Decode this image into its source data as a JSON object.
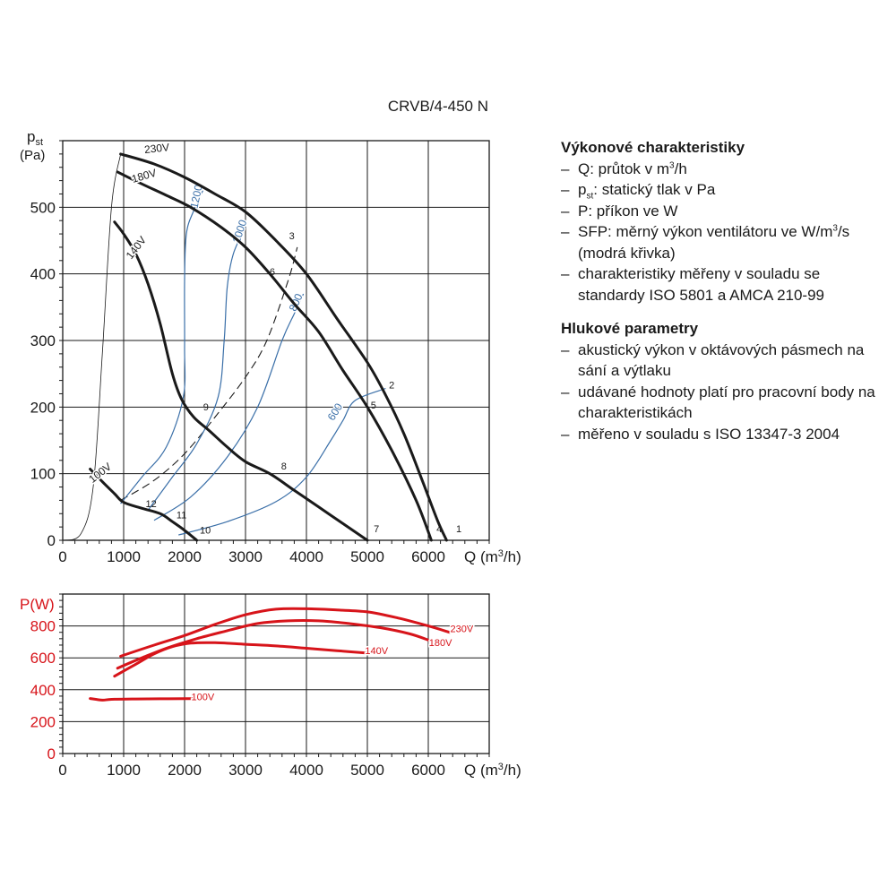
{
  "model_title": "CRVB/4-450 N",
  "info": {
    "performance": {
      "heading": "Výkonové charakteristiky",
      "items": [
        {
          "pre": "Q: průtok v m",
          "sup": "3",
          "post": "/h"
        },
        {
          "pre": "p",
          "sub": "st",
          "post": ": statický tlak v Pa"
        },
        {
          "pre": "P: příkon ve W"
        },
        {
          "pre": "SFP: měrný výkon ventilátoru ve W/m",
          "sup": "3",
          "post": "/s (modrá křivka)"
        },
        {
          "pre": "charakteristiky měřeny v souladu se standardy ISO 5801 a AMCA 210-99"
        }
      ]
    },
    "noise": {
      "heading": "Hlukové parametry",
      "items": [
        {
          "pre": "akustický výkon v oktávových pásmech na sání a výtlaku"
        },
        {
          "pre": "udávané hodnoty platí pro pracovní body na charakteristikách"
        },
        {
          "pre": "měřeno v souladu s ISO 13347-3 2004"
        }
      ]
    }
  },
  "colors": {
    "pressure_curve": "#1a1a1a",
    "sfp_curve": "#3a6fa8",
    "power_curve": "#d7141a",
    "grid": "#1a1a1a"
  },
  "chart_data": [
    {
      "type": "line",
      "xlabel_pre": "Q (m",
      "xlabel_sup": "3",
      "xlabel_post": "/h)",
      "ylabel_main": "p",
      "ylabel_sub": "st",
      "ylabel_unit": "(Pa)",
      "xlim": [
        0,
        7000
      ],
      "ylim": [
        0,
        600
      ],
      "xticks": [
        0,
        1000,
        2000,
        3000,
        4000,
        5000,
        6000
      ],
      "yticks": [
        0,
        100,
        200,
        300,
        400,
        500
      ],
      "grid": true,
      "series": [
        {
          "name": "230V",
          "points": [
            [
              950,
              580
            ],
            [
              1500,
              565
            ],
            [
              2000,
              545
            ],
            [
              2500,
              520
            ],
            [
              3000,
              493
            ],
            [
              3500,
              450
            ],
            [
              4000,
              400
            ],
            [
              4500,
              333
            ],
            [
              5000,
              267
            ],
            [
              5300,
              218
            ],
            [
              5600,
              160
            ],
            [
              5900,
              90
            ],
            [
              6150,
              30
            ],
            [
              6300,
              0
            ]
          ]
        },
        {
          "name": "180V",
          "points": [
            [
              900,
              553
            ],
            [
              1300,
              535
            ],
            [
              1700,
              518
            ],
            [
              2100,
              500
            ],
            [
              2600,
              470
            ],
            [
              3000,
              440
            ],
            [
              3400,
              400
            ],
            [
              3800,
              355
            ],
            [
              4200,
              313
            ],
            [
              4600,
              255
            ],
            [
              5000,
              200
            ],
            [
              5400,
              135
            ],
            [
              5800,
              60
            ],
            [
              6050,
              0
            ]
          ]
        },
        {
          "name": "140V",
          "points": [
            [
              850,
              478
            ],
            [
              1000,
              460
            ],
            [
              1200,
              430
            ],
            [
              1400,
              385
            ],
            [
              1600,
              325
            ],
            [
              1800,
              250
            ],
            [
              1950,
              212
            ],
            [
              2150,
              185
            ],
            [
              2400,
              165
            ],
            [
              2700,
              140
            ],
            [
              3000,
              118
            ],
            [
              3400,
              100
            ],
            [
              3800,
              75
            ],
            [
              4200,
              50
            ],
            [
              4600,
              25
            ],
            [
              5000,
              0
            ]
          ]
        },
        {
          "name": "100V",
          "points": [
            [
              450,
              107
            ],
            [
              650,
              88
            ],
            [
              850,
              70
            ],
            [
              1000,
              57
            ],
            [
              1300,
              48
            ],
            [
              1600,
              40
            ],
            [
              1800,
              28
            ],
            [
              2000,
              15
            ],
            [
              2200,
              0
            ]
          ]
        }
      ],
      "system_curves": [
        {
          "style": "dashed",
          "points": [
            [
              950,
              60
            ],
            [
              1500,
              90
            ],
            [
              2000,
              130
            ],
            [
              2500,
              185
            ],
            [
              3000,
              245
            ],
            [
              3350,
              300
            ],
            [
              3700,
              390
            ],
            [
              3850,
              440
            ]
          ]
        },
        {
          "style": "thin",
          "points": [
            [
              0,
              0
            ],
            [
              300,
              10
            ],
            [
              500,
              80
            ],
            [
              650,
              280
            ],
            [
              800,
              500
            ],
            [
              950,
              580
            ]
          ]
        }
      ],
      "sfp_curves": [
        {
          "label": "1200",
          "points": [
            [
              950,
              55
            ],
            [
              1300,
              95
            ],
            [
              1700,
              140
            ],
            [
              1980,
              215
            ],
            [
              2000,
              290
            ],
            [
              2000,
              390
            ],
            [
              2030,
              460
            ],
            [
              2150,
              495
            ],
            [
              2300,
              525
            ]
          ]
        },
        {
          "label": "1000",
          "points": [
            [
              1400,
              45
            ],
            [
              1800,
              95
            ],
            [
              2200,
              145
            ],
            [
              2550,
              215
            ],
            [
              2650,
              300
            ],
            [
              2700,
              380
            ],
            [
              2800,
              430
            ],
            [
              3000,
              470
            ]
          ]
        },
        {
          "label": "800",
          "points": [
            [
              1500,
              30
            ],
            [
              2100,
              65
            ],
            [
              2700,
              125
            ],
            [
              3200,
              200
            ],
            [
              3600,
              300
            ],
            [
              3800,
              340
            ],
            [
              3950,
              370
            ]
          ]
        },
        {
          "label": "600",
          "points": [
            [
              1900,
              8
            ],
            [
              2700,
              28
            ],
            [
              3500,
              58
            ],
            [
              4000,
              95
            ],
            [
              4400,
              150
            ],
            [
              4600,
              180
            ],
            [
              4800,
              210
            ],
            [
              5300,
              228
            ]
          ]
        }
      ],
      "curve_labels": [
        {
          "label": "230V",
          "x": 1550,
          "y": 583,
          "angle": -6
        },
        {
          "label": "180V",
          "x": 1350,
          "y": 542,
          "angle": -16
        },
        {
          "label": "140V",
          "x": 1250,
          "y": 436,
          "angle": -52
        },
        {
          "label": "100V",
          "x": 650,
          "y": 97,
          "angle": -38
        }
      ],
      "points": [
        {
          "label": "1",
          "x": 6500,
          "y": 12
        },
        {
          "label": "2",
          "x": 5400,
          "y": 228
        },
        {
          "label": "3",
          "x": 3760,
          "y": 452
        },
        {
          "label": "4",
          "x": 6180,
          "y": 12
        },
        {
          "label": "5",
          "x": 5100,
          "y": 198
        },
        {
          "label": "6",
          "x": 3440,
          "y": 398
        },
        {
          "label": "7",
          "x": 5150,
          "y": 12
        },
        {
          "label": "8",
          "x": 3630,
          "y": 106
        },
        {
          "label": "9",
          "x": 2350,
          "y": 195
        },
        {
          "label": "10",
          "x": 2340,
          "y": 10
        },
        {
          "label": "11",
          "x": 1950,
          "y": 33
        },
        {
          "label": "12",
          "x": 1450,
          "y": 50
        }
      ]
    },
    {
      "type": "line",
      "xlabel_pre": "Q (m",
      "xlabel_sup": "3",
      "xlabel_post": "/h)",
      "ylabel": "P(W)",
      "xlim": [
        0,
        7000
      ],
      "ylim": [
        0,
        1000
      ],
      "xticks": [
        0,
        1000,
        2000,
        3000,
        4000,
        5000,
        6000
      ],
      "yticks": [
        0,
        200,
        400,
        600,
        800
      ],
      "grid": true,
      "series": [
        {
          "name": "230V",
          "points": [
            [
              950,
              610
            ],
            [
              1500,
              680
            ],
            [
              2000,
              740
            ],
            [
              2500,
              810
            ],
            [
              3000,
              870
            ],
            [
              3500,
              905
            ],
            [
              4000,
              908
            ],
            [
              4500,
              900
            ],
            [
              5000,
              888
            ],
            [
              5500,
              850
            ],
            [
              6000,
              800
            ],
            [
              6350,
              760
            ]
          ]
        },
        {
          "name": "180V",
          "points": [
            [
              900,
              535
            ],
            [
              1300,
              600
            ],
            [
              1700,
              660
            ],
            [
              2200,
              720
            ],
            [
              2700,
              770
            ],
            [
              3200,
              815
            ],
            [
              3700,
              832
            ],
            [
              4200,
              832
            ],
            [
              4700,
              815
            ],
            [
              5200,
              790
            ],
            [
              5700,
              750
            ],
            [
              6050,
              705
            ]
          ]
        },
        {
          "name": "140V",
          "points": [
            [
              850,
              485
            ],
            [
              1200,
              560
            ],
            [
              1500,
              625
            ],
            [
              1800,
              670
            ],
            [
              2100,
              692
            ],
            [
              2500,
              695
            ],
            [
              3000,
              685
            ],
            [
              3500,
              675
            ],
            [
              4000,
              660
            ],
            [
              4500,
              645
            ],
            [
              5000,
              630
            ]
          ]
        },
        {
          "name": "100V",
          "points": [
            [
              450,
              345
            ],
            [
              650,
              335
            ],
            [
              800,
              340
            ],
            [
              1200,
              342
            ],
            [
              1600,
              343
            ],
            [
              2000,
              344
            ],
            [
              2200,
              344
            ]
          ]
        }
      ],
      "curve_labels": [
        {
          "label": "230V",
          "x": 6550,
          "y": 760
        },
        {
          "label": "180V",
          "x": 6200,
          "y": 675
        },
        {
          "label": "140V",
          "x": 5150,
          "y": 625
        },
        {
          "label": "100V",
          "x": 2300,
          "y": 335
        }
      ]
    }
  ]
}
